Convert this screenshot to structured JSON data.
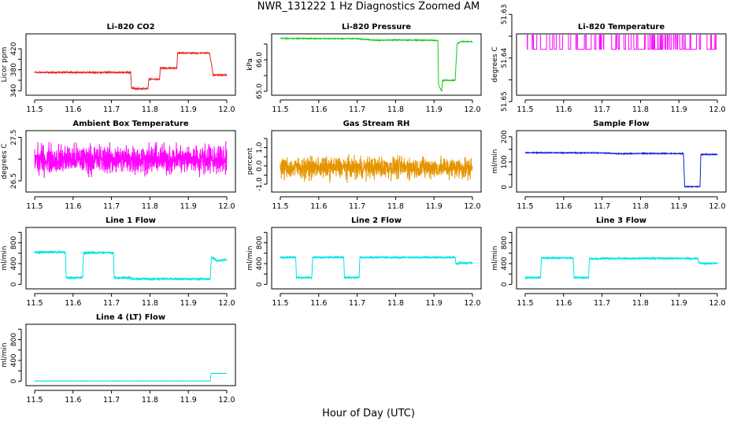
{
  "figure": {
    "title": "NWR_131222  1 Hz Diagnostics Zoomed AM",
    "xlabel": "Hour of Day (UTC)"
  },
  "chart_data": [
    {
      "id": "li820-co2",
      "type": "line",
      "title": "Li-820 CO2",
      "ylabel": "Licor ppm",
      "color": "#e8231f",
      "xlim": [
        11.5,
        12.0
      ],
      "xticks": [
        "11.5",
        "11.6",
        "11.7",
        "11.8",
        "11.9",
        "12.0"
      ],
      "ylim": [
        336,
        444
      ],
      "yticks": [
        "340",
        "380",
        "420"
      ],
      "ytick_values": [
        340,
        360,
        380,
        400,
        420
      ],
      "ytick_label_every": 2,
      "x": [
        11.5,
        11.75,
        11.752,
        11.76,
        11.762,
        11.795,
        11.797,
        11.825,
        11.827,
        11.87,
        11.872,
        11.955,
        11.957,
        11.965,
        11.967,
        12.0
      ],
      "y": [
        375,
        375,
        345,
        344,
        344,
        344,
        362,
        362,
        383,
        383,
        412,
        412,
        404,
        369,
        370,
        370
      ],
      "noise": 1
    },
    {
      "id": "li820-pressure",
      "type": "line",
      "title": "Li-820 Pressure",
      "ylabel": "kPa",
      "color": "#11cc11",
      "xlim": [
        11.5,
        12.0
      ],
      "xticks": [
        "11.5",
        "11.6",
        "11.7",
        "11.8",
        "11.9",
        "12.0"
      ],
      "ylim": [
        64.95,
        66.75
      ],
      "yticks": [
        "65.0",
        "66.0"
      ],
      "ytick_values": [
        65.0,
        65.5,
        66.0,
        66.5
      ],
      "ytick_label_every": 2,
      "x": [
        11.5,
        11.7,
        11.75,
        11.8,
        11.9,
        11.91,
        11.912,
        11.92,
        11.922,
        11.955,
        11.96,
        11.97,
        12.0
      ],
      "y": [
        66.68,
        66.67,
        66.62,
        66.63,
        66.62,
        66.61,
        65.2,
        65.0,
        65.35,
        65.35,
        66.5,
        66.58,
        66.58
      ],
      "noise": 0.01
    },
    {
      "id": "li820-temperature",
      "type": "line",
      "title": "Li-820 Temperature",
      "ylabel": "degrees C",
      "color": "#ff00ff",
      "xlim": [
        11.5,
        12.0
      ],
      "xticks": [
        "11.5",
        "11.6",
        "11.7",
        "11.8",
        "11.9",
        "12.0"
      ],
      "ylim": [
        51.648,
        51.635
      ],
      "yticks": [
        "51.65",
        "51.64",
        "51.63"
      ],
      "ytick_values": [
        51.65,
        51.645,
        51.64,
        51.635,
        51.63
      ],
      "ytick_label_every": 2,
      "x": [
        11.5,
        12.0
      ],
      "y": [
        51.633,
        51.633
      ],
      "digital_levels": [
        51.632,
        51.638
      ],
      "noise": 0
    },
    {
      "id": "ambient-box-temperature",
      "type": "line",
      "title": "Ambient Box Temperature",
      "ylabel": "degrees C",
      "color": "#ff00ff",
      "xlim": [
        11.5,
        12.0
      ],
      "xticks": [
        "11.5",
        "11.6",
        "11.7",
        "11.8",
        "11.9",
        "12.0"
      ],
      "ylim": [
        26.3,
        27.6
      ],
      "yticks": [
        "26.5",
        "27.5"
      ],
      "ytick_values": [
        26.5,
        27.0,
        27.5
      ],
      "ytick_label_every": 2,
      "x": [
        11.5,
        12.0
      ],
      "y": [
        27.0,
        27.0
      ],
      "noise": 0.28
    },
    {
      "id": "gas-stream-rh",
      "type": "line",
      "title": "Gas Stream RH",
      "ylabel": "percent",
      "color": "#e69500",
      "xlim": [
        11.5,
        12.0
      ],
      "xticks": [
        "11.5",
        "11.6",
        "11.7",
        "11.8",
        "11.9",
        "12.0"
      ],
      "ylim": [
        -1.3,
        1.8
      ],
      "yticks": [
        "-1.0",
        "0.0",
        "1.0"
      ],
      "ytick_values": [
        -1.0,
        -0.5,
        0.0,
        0.5,
        1.0,
        1.5
      ],
      "ytick_label_every": 2,
      "x": [
        11.5,
        12.0
      ],
      "y": [
        -0.1,
        -0.1
      ],
      "noise": 0.5
    },
    {
      "id": "sample-flow",
      "type": "line",
      "title": "Sample Flow",
      "ylabel": "ml/min",
      "color": "#1122dd",
      "xlim": [
        11.5,
        12.0
      ],
      "xticks": [
        "11.5",
        "11.6",
        "11.7",
        "11.8",
        "11.9",
        "12.0"
      ],
      "ylim": [
        -10,
        215
      ],
      "yticks": [
        "0",
        "100",
        "200"
      ],
      "ytick_values": [
        0,
        50,
        100,
        150,
        200
      ],
      "ytick_label_every": 2,
      "x": [
        11.5,
        11.7,
        11.75,
        11.8,
        11.9,
        11.912,
        11.915,
        11.955,
        11.957,
        12.0
      ],
      "y": [
        137,
        136,
        133,
        134,
        133,
        133,
        2,
        2,
        130,
        130
      ],
      "noise": 1.5
    },
    {
      "id": "line-1-flow",
      "type": "line",
      "title": "Line 1 Flow",
      "ylabel": "ml/min",
      "color": "#00e5e5",
      "xlim": [
        11.5,
        12.0
      ],
      "xticks": [
        "11.5",
        "11.6",
        "11.7",
        "11.8",
        "11.9",
        "12.0"
      ],
      "ylim": [
        -40,
        1050
      ],
      "yticks": [
        "0",
        "400",
        "800"
      ],
      "ytick_values": [
        0,
        200,
        400,
        600,
        800,
        1000
      ],
      "ytick_label_every": 2,
      "x": [
        11.5,
        11.58,
        11.582,
        11.625,
        11.627,
        11.705,
        11.707,
        11.75,
        11.752,
        11.957,
        11.96,
        11.975,
        12.0
      ],
      "y": [
        620,
        620,
        130,
        130,
        610,
        610,
        130,
        130,
        105,
        105,
        520,
        460,
        470
      ],
      "noise": 20
    },
    {
      "id": "line-2-flow",
      "type": "line",
      "title": "Line 2 Flow",
      "ylabel": "ml/min",
      "color": "#00e5e5",
      "xlim": [
        11.5,
        12.0
      ],
      "xticks": [
        "11.5",
        "11.6",
        "11.7",
        "11.8",
        "11.9",
        "12.0"
      ],
      "ylim": [
        -40,
        1050
      ],
      "yticks": [
        "0",
        "400",
        "800"
      ],
      "ytick_values": [
        0,
        200,
        400,
        600,
        800,
        1000
      ],
      "ytick_label_every": 2,
      "x": [
        11.5,
        11.54,
        11.542,
        11.582,
        11.584,
        11.665,
        11.667,
        11.705,
        11.707,
        11.955,
        11.957,
        11.97,
        12.0
      ],
      "y": [
        520,
        520,
        130,
        130,
        520,
        520,
        130,
        130,
        520,
        520,
        400,
        410,
        410
      ],
      "noise": 15
    },
    {
      "id": "line-3-flow",
      "type": "line",
      "title": "Line 3 Flow",
      "ylabel": "ml/min",
      "color": "#00e5e5",
      "xlim": [
        11.5,
        12.0
      ],
      "xticks": [
        "11.5",
        "11.6",
        "11.7",
        "11.8",
        "11.9",
        "12.0"
      ],
      "ylim": [
        -40,
        1050
      ],
      "yticks": [
        "0",
        "400",
        "800"
      ],
      "ytick_values": [
        0,
        200,
        400,
        600,
        800,
        1000
      ],
      "ytick_label_every": 2,
      "x": [
        11.5,
        11.54,
        11.542,
        11.625,
        11.627,
        11.665,
        11.667,
        11.7,
        11.95,
        11.952,
        11.97,
        12.0
      ],
      "y": [
        130,
        130,
        510,
        510,
        130,
        130,
        490,
        500,
        500,
        420,
        400,
        410
      ],
      "noise": 15
    },
    {
      "id": "line-4-lt-flow",
      "type": "line",
      "title": "Line 4 (LT) Flow",
      "ylabel": "ml/min",
      "color": "#00e5e5",
      "xlim": [
        11.5,
        12.0
      ],
      "xticks": [
        "11.5",
        "11.6",
        "11.7",
        "11.8",
        "11.9",
        "12.0"
      ],
      "ylim": [
        -40,
        1050
      ],
      "yticks": [
        "0",
        "400",
        "800"
      ],
      "ytick_values": [
        0,
        200,
        400,
        600,
        800,
        1000
      ],
      "ytick_label_every": 2,
      "x": [
        11.5,
        11.957,
        11.959,
        12.0
      ],
      "y": [
        5,
        5,
        150,
        150
      ],
      "noise": 2
    }
  ]
}
